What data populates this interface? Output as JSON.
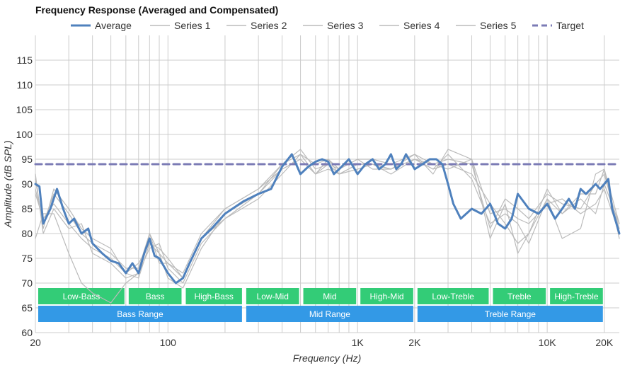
{
  "chart_data": {
    "type": "line",
    "title": "Frequency Response (Averaged and Compensated)",
    "xlabel": "Frequency (Hz)",
    "ylabel": "Amplitude (dB SPL)",
    "x_scale": "log",
    "xlim": [
      20,
      24000
    ],
    "ylim": [
      60,
      120
    ],
    "grid": true,
    "legend_position": "top",
    "x_tick_labels": [
      {
        "value": 20,
        "label": "20"
      },
      {
        "value": 100,
        "label": "100"
      },
      {
        "value": 1000,
        "label": "1K"
      },
      {
        "value": 2000,
        "label": "2K"
      },
      {
        "value": 10000,
        "label": "10K"
      },
      {
        "value": 20000,
        "label": "20K"
      }
    ],
    "y_ticks": [
      60,
      65,
      70,
      75,
      80,
      85,
      90,
      95,
      100,
      105,
      110,
      115
    ],
    "series": [
      {
        "name": "Average",
        "color": "#4f81bd",
        "style": "solid-thick",
        "x": [
          20,
          21,
          22,
          24,
          26,
          28,
          30,
          32,
          35,
          38,
          40,
          45,
          50,
          55,
          60,
          65,
          70,
          75,
          80,
          85,
          90,
          100,
          110,
          120,
          130,
          150,
          170,
          200,
          250,
          300,
          350,
          400,
          450,
          500,
          550,
          600,
          650,
          700,
          750,
          800,
          900,
          1000,
          1100,
          1200,
          1300,
          1400,
          1500,
          1600,
          1700,
          1800,
          2000,
          2200,
          2400,
          2600,
          2800,
          3000,
          3200,
          3500,
          4000,
          4500,
          5000,
          5500,
          6000,
          6500,
          7000,
          8000,
          9000,
          10000,
          11000,
          12000,
          13000,
          14000,
          15000,
          16000,
          17000,
          18000,
          19000,
          20000,
          21000,
          22000,
          24000
        ],
        "y": [
          90,
          89.5,
          82,
          85,
          89,
          85,
          82,
          83,
          80,
          81,
          78,
          76,
          74.5,
          74,
          72,
          74,
          72,
          76,
          79,
          75.5,
          75,
          72,
          70,
          71,
          74,
          79,
          81,
          84,
          86.5,
          88,
          89,
          93.5,
          96,
          92,
          93.5,
          94.5,
          95,
          94.5,
          92,
          93,
          95,
          92,
          94,
          95,
          93,
          94,
          96,
          93,
          94,
          96,
          93,
          94,
          95,
          95,
          94,
          90,
          86,
          83,
          85,
          84,
          86,
          82,
          81,
          83,
          88,
          85,
          84,
          86,
          83,
          85,
          87,
          85,
          89,
          88,
          89,
          90,
          89,
          90,
          91,
          85,
          80
        ]
      },
      {
        "name": "Series 1",
        "color": "#bbbbbb",
        "style": "solid-thin",
        "x": [
          20,
          22,
          25,
          30,
          35,
          40,
          50,
          60,
          70,
          80,
          90,
          100,
          120,
          150,
          200,
          300,
          400,
          500,
          600,
          700,
          800,
          1000,
          1200,
          1500,
          2000,
          2500,
          3000,
          4000,
          5000,
          6000,
          7000,
          8000,
          10000,
          12000,
          15000,
          18000,
          20000,
          24000
        ],
        "y": [
          92,
          80,
          85,
          81,
          82,
          76,
          74,
          71,
          72,
          77,
          78,
          73,
          70,
          78,
          83,
          87,
          92,
          96,
          94,
          95,
          92,
          94,
          94,
          93,
          95,
          93,
          96,
          91,
          82,
          84,
          82,
          78,
          87,
          84,
          87,
          84,
          90,
          82
        ]
      },
      {
        "name": "Series 2",
        "color": "#bbbbbb",
        "style": "solid-thin",
        "x": [
          20,
          22,
          25,
          30,
          35,
          40,
          50,
          60,
          70,
          80,
          90,
          100,
          120,
          150,
          200,
          300,
          400,
          500,
          600,
          700,
          800,
          1000,
          1200,
          1500,
          2000,
          2500,
          3000,
          4000,
          5000,
          6000,
          7000,
          8000,
          10000,
          12000,
          15000,
          18000,
          20000,
          24000
        ],
        "y": [
          89,
          82,
          88,
          84,
          80,
          78,
          76,
          73,
          73,
          80,
          74,
          74,
          72,
          80,
          85,
          89,
          94,
          97,
          93,
          94,
          93,
          95,
          95,
          94,
          96,
          94,
          95,
          94,
          81,
          87,
          85,
          83,
          88,
          86,
          85,
          90,
          92,
          81
        ]
      },
      {
        "name": "Series 3",
        "color": "#bbbbbb",
        "style": "solid-thin",
        "x": [
          20,
          22,
          25,
          30,
          35,
          40,
          50,
          60,
          70,
          80,
          90,
          100,
          120,
          150,
          200,
          300,
          400,
          500,
          600,
          700,
          800,
          1000,
          1200,
          1500,
          2000,
          2500,
          3000,
          4000,
          5000,
          6000,
          7000,
          8000,
          10000,
          12000,
          15000,
          18000,
          20000,
          24000
        ],
        "y": [
          88,
          83,
          86,
          82,
          79,
          77,
          75,
          72,
          71,
          78,
          76,
          71,
          69,
          77,
          84,
          88,
          93,
          95,
          92,
          93,
          92,
          93,
          94,
          92,
          95,
          93,
          94,
          92,
          86,
          82,
          78,
          80,
          89,
          84,
          88,
          88,
          93,
          79
        ]
      },
      {
        "name": "Series 4",
        "color": "#bbbbbb",
        "style": "solid-thin",
        "x": [
          20,
          22,
          25,
          30,
          35,
          40,
          50,
          60,
          70,
          80,
          90,
          100,
          120,
          150,
          200,
          300,
          400,
          500,
          600,
          700,
          800,
          1000,
          1200,
          1500,
          2000,
          2500,
          3000,
          4000,
          5000,
          6000,
          7000,
          8000,
          10000,
          12000,
          15000,
          18000,
          20000,
          24000
        ],
        "y": [
          91,
          81,
          89,
          85,
          81,
          79,
          77,
          72,
          74,
          78,
          77,
          75,
          71,
          79,
          83,
          88,
          94,
          96,
          92,
          95,
          93,
          95,
          93,
          93,
          96,
          92,
          97,
          95,
          84,
          85,
          83,
          82,
          86,
          87,
          84,
          86,
          89,
          80
        ]
      },
      {
        "name": "Series 5",
        "color": "#bbbbbb",
        "style": "solid-thin",
        "x": [
          20,
          22,
          25,
          30,
          35,
          40,
          50,
          60,
          70,
          80,
          90,
          100,
          120,
          150,
          200,
          300,
          400,
          500,
          600,
          700,
          800,
          1000,
          1200,
          1500,
          2000,
          2500,
          3000,
          4000,
          5000,
          6000,
          7000,
          8000,
          10000,
          12000,
          15000,
          18000,
          20000,
          24000
        ],
        "y": [
          79,
          84,
          84,
          76,
          70,
          68,
          66,
          70,
          72,
          80,
          76,
          74,
          71,
          79,
          85,
          89,
          93,
          95,
          92,
          94,
          92,
          94,
          94,
          93,
          95,
          94,
          93,
          95,
          79,
          86,
          76,
          80,
          87,
          79,
          81,
          92,
          93,
          82
        ]
      },
      {
        "name": "Target",
        "color": "#7b7bb5",
        "style": "dashed",
        "x": [
          20,
          24000
        ],
        "y": [
          94,
          94
        ]
      }
    ],
    "bands": [
      {
        "label": "Low-Bass",
        "from": 20,
        "to": 60,
        "row": 1
      },
      {
        "label": "Bass",
        "from": 60,
        "to": 120,
        "row": 1
      },
      {
        "label": "High-Bass",
        "from": 120,
        "to": 250,
        "row": 1
      },
      {
        "label": "Low-Mid",
        "from": 250,
        "to": 500,
        "row": 1
      },
      {
        "label": "Mid",
        "from": 500,
        "to": 1000,
        "row": 1
      },
      {
        "label": "High-Mid",
        "from": 1000,
        "to": 2000,
        "row": 1
      },
      {
        "label": "Low-Treble",
        "from": 2000,
        "to": 5000,
        "row": 1
      },
      {
        "label": "Treble",
        "from": 5000,
        "to": 10000,
        "row": 1
      },
      {
        "label": "High-Treble",
        "from": 10000,
        "to": 20000,
        "row": 1
      },
      {
        "label": "Bass Range",
        "from": 20,
        "to": 250,
        "row": 2
      },
      {
        "label": "Mid Range",
        "from": 250,
        "to": 2000,
        "row": 2
      },
      {
        "label": "Treble Range",
        "from": 2000,
        "to": 20000,
        "row": 2
      }
    ],
    "band_colors": {
      "row1": "#33cc77",
      "row2": "#3399e6"
    }
  }
}
